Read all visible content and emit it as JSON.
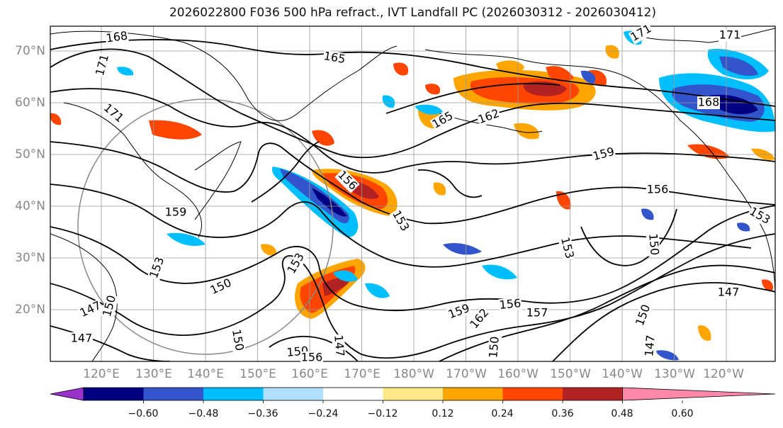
{
  "title": "2026022800 F036 500 hPa refract., IVT Landfall PC (2026030312 - 2026030412)",
  "lat_labels": [
    "70°N",
    "60°N",
    "50°N",
    "40°N",
    "30°N",
    "20°N"
  ],
  "lon_labels": [
    "120°E",
    "130°E",
    "140°E",
    "150°E",
    "160°E",
    "170°E",
    "180°W",
    "170°W",
    "160°W",
    "150°W",
    "140°W",
    "130°W",
    "120°W"
  ],
  "colorbar": {
    "ticks": [
      "−0.60",
      "−0.48",
      "−0.36",
      "−0.24",
      "−0.12",
      "0.12",
      "0.24",
      "0.36",
      "0.48",
      "0.60"
    ],
    "colors": [
      "#9933cc",
      "#000080",
      "#3355cc",
      "#00bfff",
      "#b0e0ff",
      "#ffffff",
      "#ffe88a",
      "#ffa500",
      "#ff4500",
      "#b22222",
      "#ff88aa"
    ]
  },
  "contour_labels": [
    "168",
    "171",
    "171",
    "165",
    "171",
    "171",
    "168",
    "165",
    "162",
    "159",
    "156",
    "153",
    "156",
    "159",
    "153",
    "150",
    "153",
    "150",
    "156",
    "153",
    "157",
    "150",
    "147",
    "147",
    "150",
    "150",
    "147",
    "150",
    "159",
    "162",
    "156",
    "147",
    "150",
    "147",
    "153"
  ],
  "colors": {
    "contour": "#000000",
    "grid": "#999999",
    "coast": "#000000"
  }
}
